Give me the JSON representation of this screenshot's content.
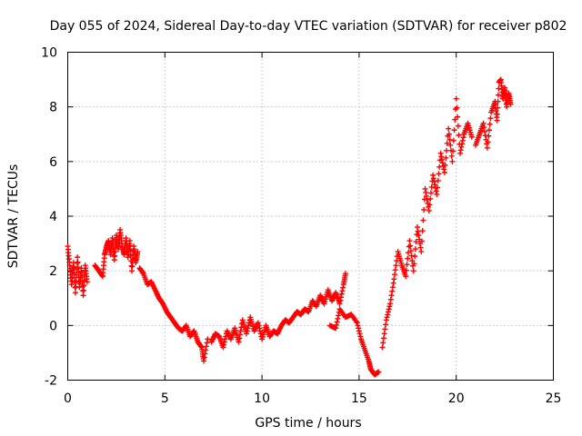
{
  "chart_data": {
    "type": "scatter",
    "title": "Day 055 of 2024, Sidereal Day-to-day VTEC variation (SDTVAR) for receiver p802",
    "xlabel": "GPS time / hours",
    "ylabel": "SDTVAR / TECUs",
    "xlim": [
      0,
      25
    ],
    "ylim": [
      -2,
      10
    ],
    "xticks": [
      0,
      5,
      10,
      15,
      20,
      25
    ],
    "yticks": [
      -2,
      0,
      2,
      4,
      6,
      8,
      10
    ],
    "grid": true,
    "marker": "plus",
    "color": "#ff0000",
    "series": [
      {
        "name": "SDTVAR",
        "segments": [
          {
            "x": [
              0.0,
              0.1,
              0.2,
              0.3,
              0.4,
              0.5,
              0.6,
              0.7,
              0.8,
              0.9,
              1.0
            ],
            "y": [
              2.9,
              2.2,
              1.5,
              2.3,
              1.2,
              2.5,
              1.4,
              2.1,
              1.1,
              2.2,
              1.6
            ]
          },
          {
            "x": [
              1.4,
              1.6,
              1.8,
              1.9,
              2.0,
              2.1,
              2.2,
              2.3,
              2.4,
              2.5,
              2.6,
              2.7,
              2.8,
              2.9,
              3.0,
              3.1,
              3.2,
              3.3,
              3.4,
              3.5,
              3.6
            ],
            "y": [
              2.2,
              2.0,
              1.8,
              2.6,
              2.9,
              3.1,
              2.6,
              3.2,
              2.4,
              3.3,
              2.8,
              3.5,
              2.9,
              2.6,
              3.2,
              2.5,
              3.1,
              2.0,
              2.9,
              2.3,
              2.7
            ]
          },
          {
            "x": [
              3.7,
              3.9,
              4.1,
              4.3,
              4.5,
              4.7,
              4.9,
              5.1,
              5.3,
              5.5,
              5.7,
              5.9,
              6.1,
              6.3,
              6.5,
              6.7,
              6.9,
              7.0,
              7.2
            ],
            "y": [
              2.1,
              1.9,
              1.5,
              1.6,
              1.3,
              1.0,
              0.8,
              0.5,
              0.3,
              0.1,
              -0.1,
              -0.2,
              0.0,
              -0.4,
              -0.2,
              -0.6,
              -0.8,
              -1.3,
              -0.5
            ]
          },
          {
            "x": [
              7.4,
              7.6,
              7.8,
              8.0,
              8.2,
              8.4,
              8.6,
              8.8,
              9.0,
              9.2,
              9.4,
              9.6,
              9.8,
              10.0,
              10.2,
              10.4,
              10.6,
              10.8,
              11.0,
              11.2,
              11.4,
              11.6,
              11.8,
              12.0,
              12.2,
              12.4,
              12.6,
              12.8,
              13.0,
              13.2,
              13.4,
              13.6,
              13.8,
              14.0,
              14.2,
              14.3
            ],
            "y": [
              -0.6,
              -0.3,
              -0.4,
              -0.8,
              -0.2,
              -0.5,
              -0.1,
              -0.6,
              0.2,
              -0.3,
              0.3,
              -0.2,
              0.1,
              -0.5,
              0.0,
              -0.4,
              -0.2,
              -0.3,
              0.0,
              0.2,
              0.1,
              0.3,
              0.5,
              0.4,
              0.6,
              0.5,
              0.9,
              0.7,
              1.1,
              0.8,
              1.3,
              0.9,
              1.2,
              0.8,
              1.5,
              1.9
            ]
          },
          {
            "x": [
              13.5,
              13.8,
              14.0,
              14.3,
              14.6,
              14.9,
              15.1,
              15.3,
              15.5,
              15.6,
              15.8,
              16.0
            ],
            "y": [
              0.0,
              -0.1,
              0.6,
              0.3,
              0.4,
              0.1,
              -0.5,
              -0.9,
              -1.3,
              -1.6,
              -1.8,
              -1.7
            ]
          },
          {
            "x": [
              16.2,
              16.4,
              16.6,
              16.8,
              17.0,
              17.2,
              17.4,
              17.6,
              17.8,
              18.0,
              18.2,
              18.4,
              18.6,
              18.8,
              19.0,
              19.2,
              19.4,
              19.6,
              19.8,
              20.0,
              20.2,
              20.4,
              20.6,
              20.8
            ],
            "y": [
              -0.8,
              0.2,
              0.8,
              1.7,
              2.7,
              2.2,
              1.8,
              3.1,
              2.0,
              3.6,
              2.7,
              5.0,
              4.2,
              5.5,
              4.8,
              6.3,
              5.6,
              7.2,
              6.0,
              8.3,
              6.3,
              7.0,
              7.4,
              6.9
            ]
          },
          {
            "x": [
              21.0,
              21.2,
              21.4,
              21.6,
              21.8,
              22.0,
              22.1,
              22.2,
              22.3,
              22.4,
              22.5,
              22.6,
              22.7,
              22.8
            ],
            "y": [
              6.6,
              7.0,
              7.4,
              6.5,
              7.8,
              8.2,
              7.5,
              8.9,
              9.0,
              8.3,
              8.7,
              8.0,
              8.5,
              8.1
            ]
          }
        ]
      }
    ]
  }
}
